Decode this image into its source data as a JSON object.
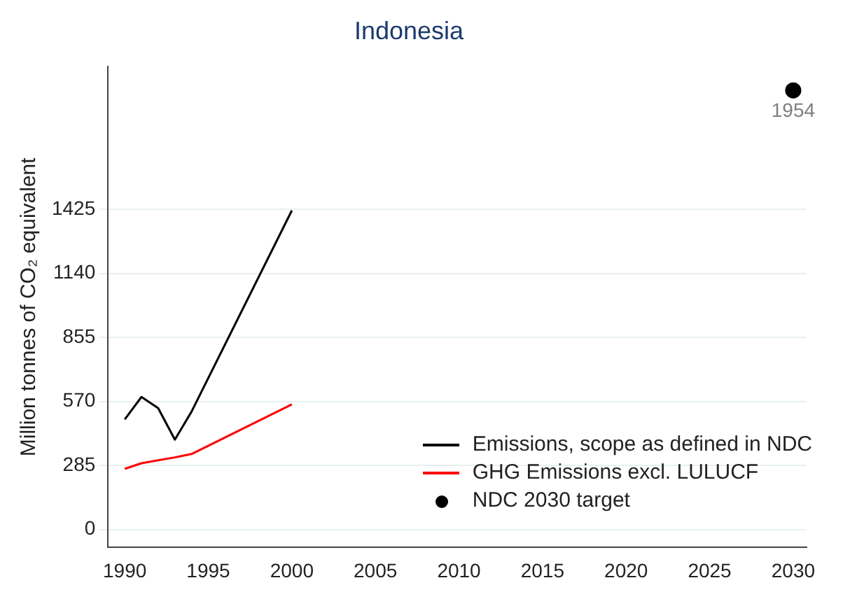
{
  "chart_data": {
    "type": "line",
    "title": "Indonesia",
    "ylabel": "Million tonnes of CO₂ equivalent",
    "xlim": [
      1989,
      2030.8
    ],
    "xticks": [
      1990,
      1995,
      2000,
      2005,
      2010,
      2015,
      2020,
      2025,
      2030
    ],
    "ylim": [
      -80,
      2060
    ],
    "yticks": [
      0,
      285,
      570,
      855,
      1140,
      1425
    ],
    "grid": "y",
    "legend": "bottom right",
    "marker": "none",
    "series": [
      {
        "name": "Emissions, scope as defined in NDC",
        "color": "#000000",
        "x": [
          1990,
          1991,
          1992,
          1993,
          1994,
          2000
        ],
        "values": [
          490,
          590,
          540,
          400,
          525,
          1420
        ]
      },
      {
        "name": "GHG Emissions excl. LULUCF",
        "color": "#ff0000",
        "x": [
          1990,
          1991,
          1992,
          1993,
          1994,
          2000
        ],
        "values": [
          270,
          295,
          308,
          321,
          336,
          557
        ]
      },
      {
        "name": "NDC 2030 target",
        "type": "scatter",
        "marker": "circle",
        "color": "#000000",
        "x": [
          2030
        ],
        "values": [
          1954
        ],
        "value_labels": [
          "1954"
        ]
      }
    ]
  }
}
